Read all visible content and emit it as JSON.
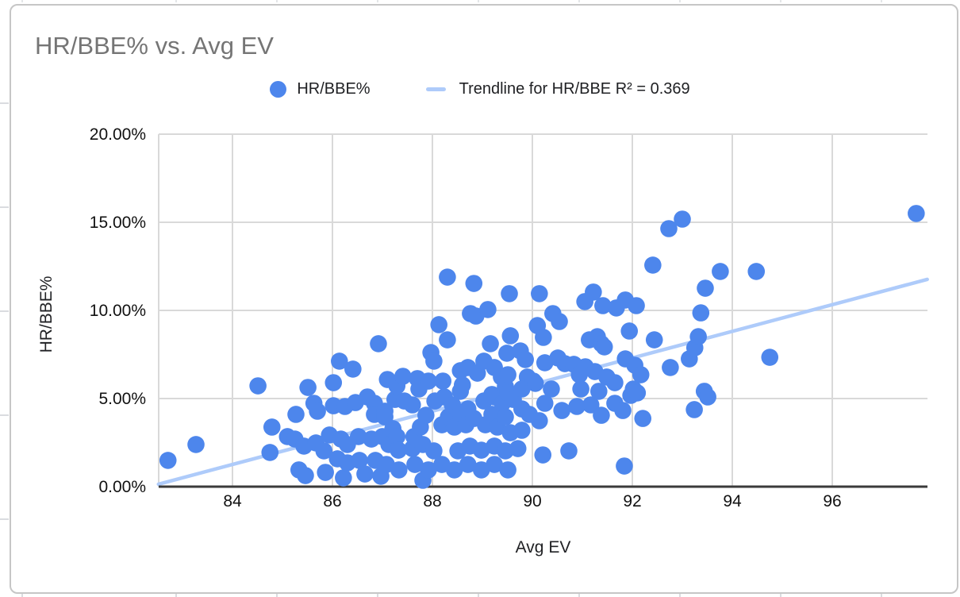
{
  "chart_data": {
    "type": "scatter",
    "title": "HR/BBE% vs. Avg EV",
    "xlabel": "Avg EV",
    "ylabel": "HR/BBE%",
    "x_ticks": [
      84,
      86,
      88,
      90,
      92,
      94,
      96
    ],
    "y_ticks_pct": [
      0,
      5,
      10,
      15,
      20
    ],
    "y_tick_labels": [
      "0.00%",
      "5.00%",
      "10.00%",
      "15.00%",
      "20.00%"
    ],
    "xlim": [
      82.52,
      97.9
    ],
    "ylim": [
      0,
      20
    ],
    "grid": true,
    "legend_position": "top",
    "legend": {
      "series_label": "HR/BBE%",
      "trendline_label": "Trendline for HR/BBE R² = 0.369"
    },
    "trendline": {
      "name": "Trendline for HR/BBE",
      "r2": 0.369,
      "ev": [
        82.52,
        97.9
      ],
      "hr": [
        0.14,
        11.76
      ]
    },
    "series": [
      {
        "name": "HR/BBE%",
        "points": [
          [
            82.71,
            1.49
          ],
          [
            83.27,
            2.39
          ],
          [
            84.51,
            5.72
          ],
          [
            84.75,
            1.94
          ],
          [
            84.79,
            3.38
          ],
          [
            85.1,
            2.84
          ],
          [
            85.25,
            2.7
          ],
          [
            85.27,
            4.1
          ],
          [
            85.33,
            0.95
          ],
          [
            85.43,
            2.3
          ],
          [
            85.46,
            0.63
          ],
          [
            85.51,
            5.63
          ],
          [
            85.63,
            4.73
          ],
          [
            85.67,
            2.48
          ],
          [
            85.7,
            4.28
          ],
          [
            85.83,
            2.03
          ],
          [
            85.86,
            0.81
          ],
          [
            85.94,
            2.93
          ],
          [
            86.02,
            5.9
          ],
          [
            86.02,
            4.59
          ],
          [
            86.1,
            1.58
          ],
          [
            86.14,
            7.12
          ],
          [
            86.17,
            2.7
          ],
          [
            86.22,
            0.5
          ],
          [
            86.25,
            4.55
          ],
          [
            86.3,
            2.39
          ],
          [
            86.3,
            1.35
          ],
          [
            86.41,
            6.67
          ],
          [
            86.46,
            4.77
          ],
          [
            86.52,
            2.84
          ],
          [
            86.54,
            1.49
          ],
          [
            86.65,
            0.72
          ],
          [
            86.7,
            5.09
          ],
          [
            86.78,
            2.7
          ],
          [
            86.84,
            4.73
          ],
          [
            86.84,
            4.1
          ],
          [
            86.86,
            1.49
          ],
          [
            86.92,
            8.11
          ],
          [
            86.97,
            0.59
          ],
          [
            87.0,
            2.84
          ],
          [
            87.05,
            4.28
          ],
          [
            87.05,
            3.96
          ],
          [
            87.08,
            1.26
          ],
          [
            87.1,
            6.08
          ],
          [
            87.13,
            2.39
          ],
          [
            87.21,
            3.29
          ],
          [
            87.25,
            4.95
          ],
          [
            87.29,
            5.72
          ],
          [
            87.29,
            2.84
          ],
          [
            87.32,
            2.07
          ],
          [
            87.33,
            0.95
          ],
          [
            87.41,
            6.26
          ],
          [
            87.44,
            4.86
          ],
          [
            87.6,
            4.64
          ],
          [
            87.6,
            2.16
          ],
          [
            87.63,
            2.84
          ],
          [
            87.65,
            1.26
          ],
          [
            87.7,
            6.13
          ],
          [
            87.73,
            5.54
          ],
          [
            87.76,
            3.38
          ],
          [
            87.81,
            2.39
          ],
          [
            87.81,
            0.36
          ],
          [
            87.87,
            4.05
          ],
          [
            87.92,
            5.99
          ],
          [
            87.92,
            0.95
          ],
          [
            87.97,
            7.61
          ],
          [
            88.03,
            7.12
          ],
          [
            88.03,
            2.03
          ],
          [
            88.05,
            4.86
          ],
          [
            88.13,
            9.19
          ],
          [
            88.19,
            3.51
          ],
          [
            88.19,
            1.26
          ],
          [
            88.21,
            5.99
          ],
          [
            88.24,
            5.09
          ],
          [
            88.3,
            11.89
          ],
          [
            88.3,
            8.33
          ],
          [
            88.32,
            3.96
          ],
          [
            88.4,
            4.64
          ],
          [
            88.44,
            3.38
          ],
          [
            88.44,
            0.95
          ],
          [
            88.51,
            2.03
          ],
          [
            88.56,
            6.58
          ],
          [
            88.56,
            5.41
          ],
          [
            88.56,
            4.19
          ],
          [
            88.6,
            5.77
          ],
          [
            88.67,
            3.51
          ],
          [
            88.71,
            6.76
          ],
          [
            88.71,
            4.41
          ],
          [
            88.71,
            1.26
          ],
          [
            88.75,
            2.3
          ],
          [
            88.76,
            9.82
          ],
          [
            88.83,
            11.53
          ],
          [
            88.83,
            3.87
          ],
          [
            88.87,
            9.68
          ],
          [
            88.9,
            6.44
          ],
          [
            88.98,
            2.07
          ],
          [
            88.98,
            0.95
          ],
          [
            89.03,
            7.12
          ],
          [
            89.03,
            4.86
          ],
          [
            89.06,
            3.51
          ],
          [
            89.11,
            10.05
          ],
          [
            89.16,
            8.11
          ],
          [
            89.19,
            5.23
          ],
          [
            89.19,
            4.1
          ],
          [
            89.24,
            6.76
          ],
          [
            89.24,
            5.09
          ],
          [
            89.24,
            2.3
          ],
          [
            89.24,
            1.26
          ],
          [
            89.3,
            3.38
          ],
          [
            89.38,
            6.22
          ],
          [
            89.4,
            4.73
          ],
          [
            89.46,
            5.68
          ],
          [
            89.46,
            3.96
          ],
          [
            89.46,
            2.03
          ],
          [
            89.49,
            7.57
          ],
          [
            89.51,
            6.35
          ],
          [
            89.51,
            5.32
          ],
          [
            89.51,
            0.95
          ],
          [
            89.54,
            10.95
          ],
          [
            89.56,
            8.56
          ],
          [
            89.56,
            3.06
          ],
          [
            89.62,
            4.95
          ],
          [
            89.71,
            2.16
          ],
          [
            89.76,
            7.7
          ],
          [
            89.79,
            5.54
          ],
          [
            89.79,
            4.41
          ],
          [
            89.79,
            3.2
          ],
          [
            89.86,
            7.21
          ],
          [
            89.9,
            6.22
          ],
          [
            89.94,
            4.1
          ],
          [
            90.02,
            5.99
          ],
          [
            90.06,
            5.86
          ],
          [
            90.1,
            9.14
          ],
          [
            90.14,
            10.95
          ],
          [
            90.14,
            3.74
          ],
          [
            90.21,
            1.8
          ],
          [
            90.22,
            8.47
          ],
          [
            90.25,
            7.03
          ],
          [
            90.25,
            4.73
          ],
          [
            90.38,
            5.54
          ],
          [
            90.41,
            9.82
          ],
          [
            90.51,
            7.3
          ],
          [
            90.54,
            9.37
          ],
          [
            90.59,
            4.32
          ],
          [
            90.65,
            6.98
          ],
          [
            90.73,
            2.03
          ],
          [
            90.83,
            6.94
          ],
          [
            90.89,
            4.55
          ],
          [
            90.94,
            6.35
          ],
          [
            90.97,
            5.54
          ],
          [
            91.05,
            10.5
          ],
          [
            91.06,
            6.8
          ],
          [
            91.14,
            8.33
          ],
          [
            91.17,
            4.64
          ],
          [
            91.22,
            11.04
          ],
          [
            91.25,
            6.53
          ],
          [
            91.3,
            8.51
          ],
          [
            91.33,
            5.41
          ],
          [
            91.38,
            8.11
          ],
          [
            91.38,
            4.05
          ],
          [
            91.41,
            10.27
          ],
          [
            91.44,
            7.93
          ],
          [
            91.49,
            6.22
          ],
          [
            91.65,
            5.9
          ],
          [
            91.65,
            4.73
          ],
          [
            91.68,
            10.14
          ],
          [
            91.81,
            4.32
          ],
          [
            91.84,
            1.17
          ],
          [
            91.86,
            10.59
          ],
          [
            91.86,
            7.25
          ],
          [
            91.94,
            8.83
          ],
          [
            91.97,
            5.18
          ],
          [
            92.02,
            5.54
          ],
          [
            92.05,
            6.89
          ],
          [
            92.08,
            10.27
          ],
          [
            92.1,
            5.32
          ],
          [
            92.17,
            6.35
          ],
          [
            92.21,
            3.87
          ],
          [
            92.41,
            12.57
          ],
          [
            92.44,
            8.33
          ],
          [
            92.73,
            14.64
          ],
          [
            92.76,
            6.76
          ],
          [
            93.0,
            15.18
          ],
          [
            93.14,
            7.25
          ],
          [
            93.24,
            4.37
          ],
          [
            93.25,
            7.88
          ],
          [
            93.32,
            8.51
          ],
          [
            93.37,
            9.86
          ],
          [
            93.44,
            5.41
          ],
          [
            93.46,
            11.26
          ],
          [
            93.51,
            5.09
          ],
          [
            93.76,
            12.21
          ],
          [
            94.48,
            12.21
          ],
          [
            94.75,
            7.34
          ],
          [
            97.68,
            15.5
          ]
        ]
      }
    ]
  },
  "colors": {
    "point": "#4d86ec",
    "trendline": "#aecbfa",
    "title": "#757575",
    "tick_label": "#111111",
    "gridline": "#d9d9d9",
    "axis_line": "#3a3a3a",
    "card_border": "#c6c6c6"
  }
}
